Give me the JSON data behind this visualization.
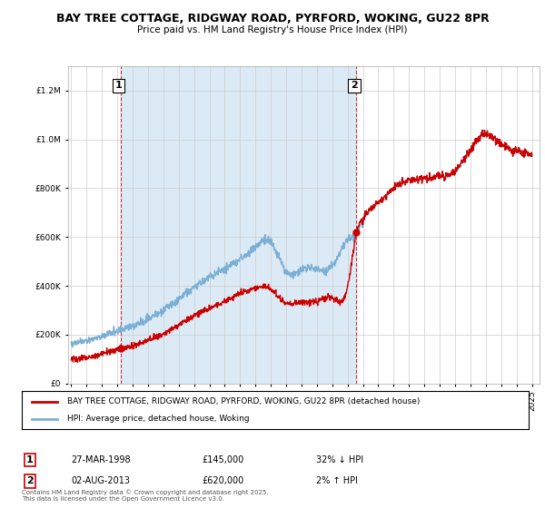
{
  "title": "BAY TREE COTTAGE, RIDGWAY ROAD, PYRFORD, WOKING, GU22 8PR",
  "subtitle": "Price paid vs. HM Land Registry's House Price Index (HPI)",
  "legend_line1": "BAY TREE COTTAGE, RIDGWAY ROAD, PYRFORD, WOKING, GU22 8PR (detached house)",
  "legend_line2": "HPI: Average price, detached house, Woking",
  "annotation1_label": "1",
  "annotation1_date": "27-MAR-1998",
  "annotation1_price": "£145,000",
  "annotation1_hpi": "32% ↓ HPI",
  "annotation2_label": "2",
  "annotation2_date": "02-AUG-2013",
  "annotation2_price": "£620,000",
  "annotation2_hpi": "2% ↑ HPI",
  "footnote": "Contains HM Land Registry data © Crown copyright and database right 2025.\nThis data is licensed under the Open Government Licence v3.0.",
  "red_color": "#cc0000",
  "blue_color": "#7bafd4",
  "shade_color": "#dceaf5",
  "background_color": "#ffffff",
  "grid_color": "#cccccc",
  "ylim": [
    0,
    1300000
  ],
  "yticks": [
    0,
    200000,
    400000,
    600000,
    800000,
    1000000,
    1200000
  ],
  "sale1_year": 1998.23,
  "sale1_price": 145000,
  "sale2_year": 2013.58,
  "sale2_price": 620000
}
